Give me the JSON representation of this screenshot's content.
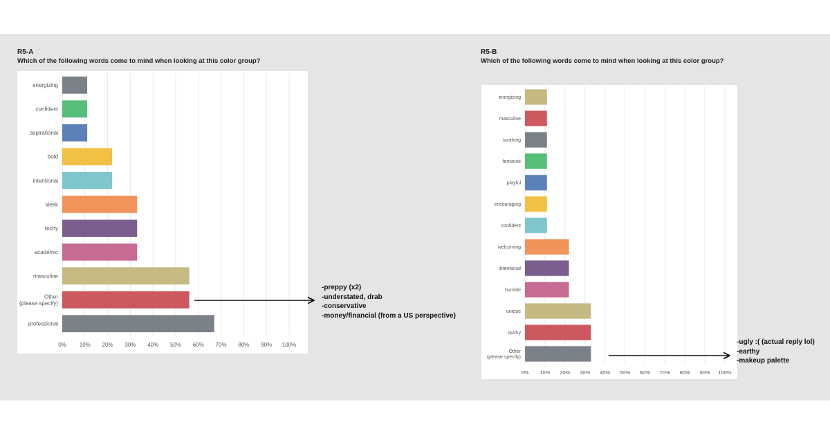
{
  "colors": {
    "background_band": "#e5e5e5",
    "gridline": "#e8e8e8",
    "label": "#555555",
    "arrow": "#111111"
  },
  "chart_data": [
    {
      "type": "bar",
      "orientation": "horizontal",
      "panel_title": "R5-A",
      "question": "Which of the following words come to mind when looking at this color group?",
      "categories": [
        "energizing",
        "confident",
        "aspirational",
        "bold",
        "intentional",
        "sleek",
        "techy",
        "academic",
        "masculine",
        "Other (please specify)",
        "professional"
      ],
      "values": [
        11,
        11,
        11,
        22,
        22,
        33,
        33,
        33,
        56,
        56,
        67
      ],
      "bar_colors": [
        "#7b8189",
        "#55bf7a",
        "#5b80ba",
        "#f2c144",
        "#7fc7cd",
        "#f2935c",
        "#7a5e8f",
        "#c86b94",
        "#c6ba84",
        "#cd5860",
        "#7b8189"
      ],
      "xlim": [
        0,
        100
      ],
      "x_ticks": [
        "0%",
        "10%",
        "20%",
        "30%",
        "40%",
        "50%",
        "60%",
        "70%",
        "80%",
        "90%",
        "100%"
      ],
      "grid": true,
      "annotation": {
        "target_category": "Other (please specify)",
        "lines": [
          "-preppy (x2)",
          "-understated, drab",
          "-conservative",
          "-money/financial (from a US perspective)"
        ]
      }
    },
    {
      "type": "bar",
      "orientation": "horizontal",
      "panel_title": "R5-B",
      "question": "Which of the following words come to mind when looking at this color group?",
      "categories": [
        "energizing",
        "masculine",
        "soothing",
        "feminine",
        "playful",
        "encouraging",
        "confident",
        "welcoming",
        "intentional",
        "humble",
        "unique",
        "quirky",
        "Other (please specify)"
      ],
      "values": [
        11,
        11,
        11,
        11,
        11,
        11,
        11,
        22,
        22,
        22,
        33,
        33,
        33
      ],
      "bar_colors": [
        "#c6ba84",
        "#cd5860",
        "#7b8189",
        "#55bf7a",
        "#5b80ba",
        "#f2c144",
        "#7fc7cd",
        "#f2935c",
        "#7a5e8f",
        "#c86b94",
        "#c6ba84",
        "#cd5860",
        "#7b8189"
      ],
      "xlim": [
        0,
        100
      ],
      "x_ticks": [
        "0%",
        "10%",
        "20%",
        "30%",
        "40%",
        "50%",
        "60%",
        "70%",
        "80%",
        "90%",
        "100%"
      ],
      "grid": true,
      "annotation": {
        "target_category": "Other (please specify)",
        "lines": [
          "-ugly :( (actual reply lol)",
          "-earthy",
          "-makeup palette"
        ]
      }
    }
  ]
}
